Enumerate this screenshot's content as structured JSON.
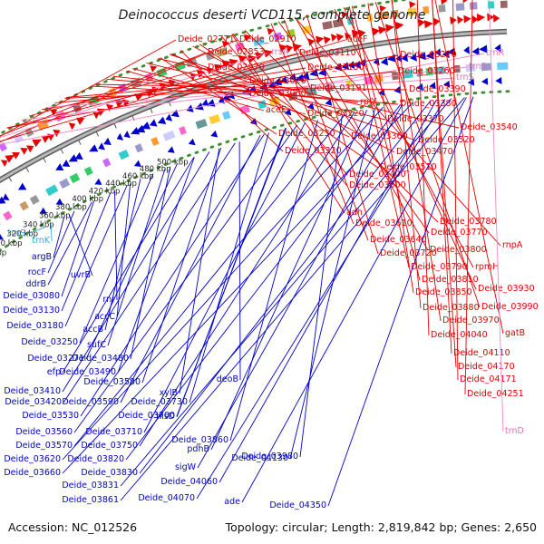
{
  "title": "Deinococcus deserti VCD115, complete genome",
  "accession": "Accession: NC_012526",
  "topology": "Topology: circular; Length: 2,819,842 bp; Genes: 2,650",
  "colors": {
    "forward": "#e80000",
    "reverse": "#0000d0",
    "rna": "#ee88cc",
    "trna_rev": "#44aadd",
    "backbone": "#888888",
    "guide": "#3a8f2a"
  },
  "kbp_ticks": [
    "280 kbp",
    "300 kbp",
    "320 kbp",
    "340 kbp",
    "360 kbp",
    "380 kbp",
    "400 kbp",
    "420 kbp",
    "440 kbp",
    "460 kbp",
    "480 kbp",
    "500 kbp"
  ],
  "red_labels": [
    "Deide_02771",
    "Deide_02910",
    "aceF",
    "trnR",
    "Deide_02853",
    "rrsA",
    "Deide_03110",
    "Deide_03270",
    "trnS",
    "Deide_02970",
    "Deide_03150",
    "Deide_03260",
    "trnS",
    "Deide_03020",
    "Deide_03191",
    "Deide_03390",
    "Deide_03060",
    "rplY",
    "Deide_03380",
    "aceE",
    "Deide_03220",
    "Deide_03370",
    "Deide_03540",
    "Deide_03230",
    "Deide_03360",
    "Deide_03520",
    "Deide_03320",
    "Deide_03470",
    "Deide_03510",
    "Deide_03400",
    "Deide_03500",
    "adh",
    "Deide_03780",
    "Deide_03610",
    "Deide_03770",
    "Deide_03640",
    "Deide_03800",
    "rnpA",
    "Deide_03720",
    "rpmH",
    "Deide_03790",
    "Deide_03810",
    "Deide_03930",
    "Deide_03850",
    "Deide_03990",
    "Deide_03880",
    "Deide_03970",
    "Deide_04040",
    "gatB",
    "Deide_04110",
    "Deide_04170",
    "Deide_04171",
    "Deide_04251",
    "trnD"
  ],
  "blue_labels": [
    "trnS",
    "trnK",
    "argB",
    "rocF",
    "uvrB",
    "ddrB",
    "Deide_03080",
    "Deide_03130",
    "rnr",
    "accC",
    "Deide_03180",
    "accB",
    "Deide_03250",
    "sufC",
    "Deide_03271",
    "Deide_03480",
    "efp",
    "Deide_03490",
    "Deide_03410",
    "Deide_03580",
    "xylB",
    "deoB",
    "Deide_03420",
    "Deide_03590",
    "Deide_03730",
    "Deide_03530",
    "Deide_03700",
    "hisD",
    "Deide_03560",
    "Deide_03710",
    "Deide_03860",
    "Deide_03980",
    "Deide_03570",
    "Deide_03750",
    "pdhB",
    "Deide_04130",
    "Deide_03620",
    "Deide_03820",
    "sigW",
    "Deide_03660",
    "Deide_03830",
    "Deide_04060",
    "Deide_03831",
    "Deide_04070",
    "Deide_03861",
    "ade",
    "Deide_04350"
  ]
}
